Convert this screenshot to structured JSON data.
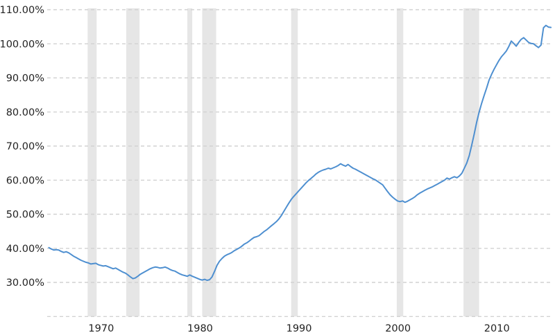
{
  "chart_data": {
    "type": "line",
    "title": "",
    "xlabel": "",
    "ylabel": "",
    "y_axis": {
      "tick_values": [
        110,
        100,
        90,
        80,
        70,
        60,
        50,
        40,
        30
      ],
      "tick_labels": [
        "110.00%",
        "100.00%",
        "90.00%",
        "80.00%",
        "70.00%",
        "60.00%",
        "50.00%",
        "40.00%",
        "30.00%"
      ],
      "baseline_value": 20,
      "grid": "dashed"
    },
    "x_axis": {
      "tick_values": [
        1970,
        1980,
        1990,
        2000,
        2010
      ],
      "tick_labels": [
        "1970",
        "1980",
        "1990",
        "2000",
        "2010"
      ],
      "grid": "off"
    },
    "series": [
      {
        "name": "percent-of-gdp",
        "x_start_year": 1966.0,
        "x_step_years": 0.25,
        "values": [
          40.2,
          39.8,
          39.5,
          39.6,
          39.5,
          39.1,
          38.8,
          39.0,
          38.7,
          38.2,
          37.7,
          37.3,
          36.9,
          36.5,
          36.2,
          35.9,
          35.7,
          35.4,
          35.5,
          35.6,
          35.2,
          35.0,
          34.8,
          34.9,
          34.6,
          34.3,
          34.0,
          34.2,
          33.8,
          33.4,
          33.0,
          32.7,
          32.2,
          31.6,
          31.1,
          31.3,
          31.8,
          32.4,
          32.8,
          33.2,
          33.6,
          34.0,
          34.3,
          34.5,
          34.4,
          34.2,
          34.3,
          34.5,
          34.2,
          33.8,
          33.5,
          33.3,
          32.9,
          32.5,
          32.2,
          32.0,
          31.8,
          32.2,
          31.8,
          31.5,
          31.2,
          30.9,
          30.7,
          30.9,
          30.6,
          30.8,
          31.6,
          33.2,
          35.0,
          36.2,
          37.0,
          37.7,
          38.1,
          38.4,
          38.8,
          39.3,
          39.7,
          40.1,
          40.6,
          41.2,
          41.6,
          42.1,
          42.7,
          43.2,
          43.4,
          43.7,
          44.3,
          44.9,
          45.4,
          46.0,
          46.6,
          47.2,
          47.8,
          48.6,
          49.6,
          50.8,
          52.0,
          53.2,
          54.3,
          55.2,
          56.0,
          56.8,
          57.6,
          58.4,
          59.2,
          59.9,
          60.5,
          61.1,
          61.8,
          62.3,
          62.7,
          63.0,
          63.2,
          63.5,
          63.3,
          63.6,
          63.9,
          64.3,
          64.8,
          64.4,
          64.1,
          64.6,
          64.0,
          63.5,
          63.2,
          62.8,
          62.4,
          62.0,
          61.6,
          61.2,
          60.8,
          60.4,
          60.1,
          59.6,
          59.1,
          58.6,
          57.6,
          56.6,
          55.7,
          55.0,
          54.4,
          53.9,
          53.7,
          53.9,
          53.5,
          53.8,
          54.2,
          54.6,
          55.1,
          55.7,
          56.2,
          56.6,
          57.0,
          57.4,
          57.7,
          58.0,
          58.4,
          58.8,
          59.2,
          59.6,
          60.0,
          60.6,
          60.3,
          60.7,
          61.0,
          60.7,
          61.2,
          62.0,
          63.5,
          65.0,
          67.2,
          70.3,
          73.5,
          77.0,
          80.0,
          82.5,
          84.8,
          87.0,
          89.3,
          91.0,
          92.5,
          93.8,
          95.1,
          96.2,
          97.0,
          97.9,
          99.2,
          100.8,
          100.1,
          99.3,
          100.4,
          101.3,
          101.8,
          101.1,
          100.4,
          100.1,
          100.0,
          99.4,
          98.9,
          99.6,
          104.7,
          105.4,
          104.9,
          104.8
        ]
      }
    ],
    "recession_bands": [
      [
        1969.92,
        1970.83
      ],
      [
        1973.83,
        1975.17
      ],
      [
        1980.0,
        1980.5
      ],
      [
        1981.5,
        1982.92
      ],
      [
        1990.5,
        1991.17
      ],
      [
        2001.17,
        2001.83
      ],
      [
        2007.92,
        2009.5
      ]
    ],
    "colors": {
      "line": "#4e8fd0",
      "recession_band": "#e6e6e6",
      "gridline": "#d2d2d2",
      "tick_text": "#222222",
      "background": "#ffffff"
    },
    "legend": "off"
  }
}
